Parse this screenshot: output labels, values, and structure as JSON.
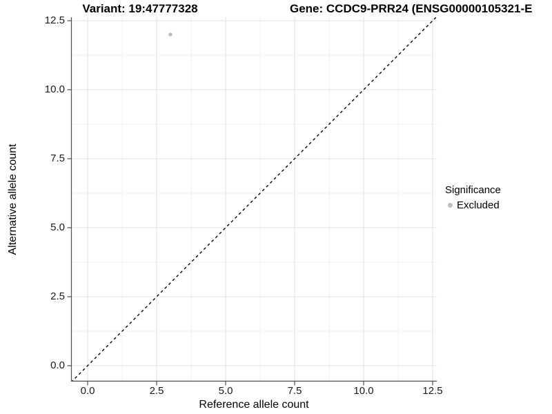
{
  "titles": {
    "left": "Variant: 19:47777328",
    "right": "Gene: CCDC9-PRR24 (ENSG00000105321-E"
  },
  "chart_data": {
    "type": "scatter",
    "xlabel": "Reference allele count",
    "ylabel": "Alternative allele count",
    "x_ticks": [
      0,
      2.5,
      5,
      7.5,
      10,
      12.5
    ],
    "y_ticks": [
      0,
      2.5,
      5,
      7.5,
      10,
      12.5
    ],
    "x_tick_labels": [
      "0.0",
      "2.5",
      "5.0",
      "7.5",
      "10.0",
      "12.5"
    ],
    "y_tick_labels": [
      "0.0",
      "2.5",
      "5.0",
      "7.5",
      "10.0",
      "12.5"
    ],
    "xlim": [
      -0.6,
      12.65
    ],
    "ylim": [
      -0.6,
      12.7
    ],
    "grid": true,
    "points": [
      {
        "x": 3,
        "y": 12,
        "label": "Excluded",
        "color": "#bebebe"
      }
    ],
    "reference_line": {
      "equation": "y = x",
      "style": "dashed",
      "color": "#000000"
    },
    "legend": {
      "position": "right",
      "title": "Significance",
      "entries": [
        {
          "label": "Excluded",
          "color": "#bebebe",
          "marker": "circle"
        }
      ]
    },
    "colors": {
      "grid_major": "#e2e2e2",
      "grid_minor": "#f1f1f1",
      "axis": "#4d4d4d",
      "tick": "#4d4d4d"
    }
  }
}
